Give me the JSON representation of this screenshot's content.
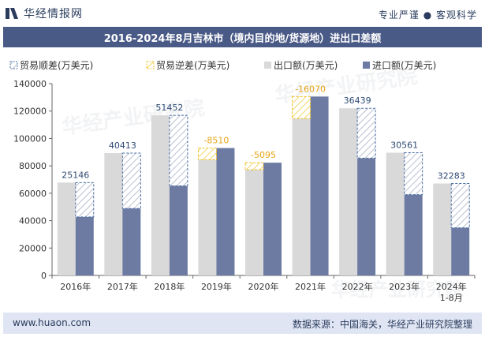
{
  "header": {
    "logo_text": "华经情报网",
    "tagline": "专业严谨 ● 客观科学"
  },
  "colors": {
    "title_bar": "#4a5a86",
    "export": "#d9d9d9",
    "import": "#6d7ba3",
    "surplus": "#4a6fa5",
    "deficit": "#f0c020",
    "surplus_label": "#2e4a73",
    "deficit_label": "#e8a317"
  },
  "chart_data": {
    "type": "bar",
    "title": "2016-2024年8月吉林市（境内目的地/货源地）进出口差额",
    "categories": [
      "2016年",
      "2017年",
      "2018年",
      "2019年",
      "2020年",
      "2021年",
      "2022年",
      "2023年",
      "2024年\n1-8月"
    ],
    "series": [
      {
        "name": "出口额(万美元)",
        "values": [
          67800,
          89300,
          116900,
          84500,
          77200,
          114500,
          122000,
          89600,
          67100
        ]
      },
      {
        "name": "进口额(万美元)",
        "values": [
          42700,
          48900,
          65400,
          93000,
          82300,
          130600,
          85600,
          59000,
          34800
        ]
      }
    ],
    "balance": {
      "surplus_name": "贸易顺差(万美元)",
      "deficit_name": "贸易逆差(万美元)",
      "labels": [
        "25146",
        "40413",
        "51452",
        "-8510",
        "-5095",
        "-16070",
        "36439",
        "30561",
        "32283"
      ]
    },
    "ylim": [
      0,
      140000
    ],
    "yticks": [
      0,
      20000,
      40000,
      60000,
      80000,
      100000,
      120000,
      140000
    ],
    "legend_position": "top-left",
    "grid": false
  },
  "footer": {
    "website": "www.huaon.com",
    "source": "数据来源：中国海关，华经产业研究院整理"
  }
}
